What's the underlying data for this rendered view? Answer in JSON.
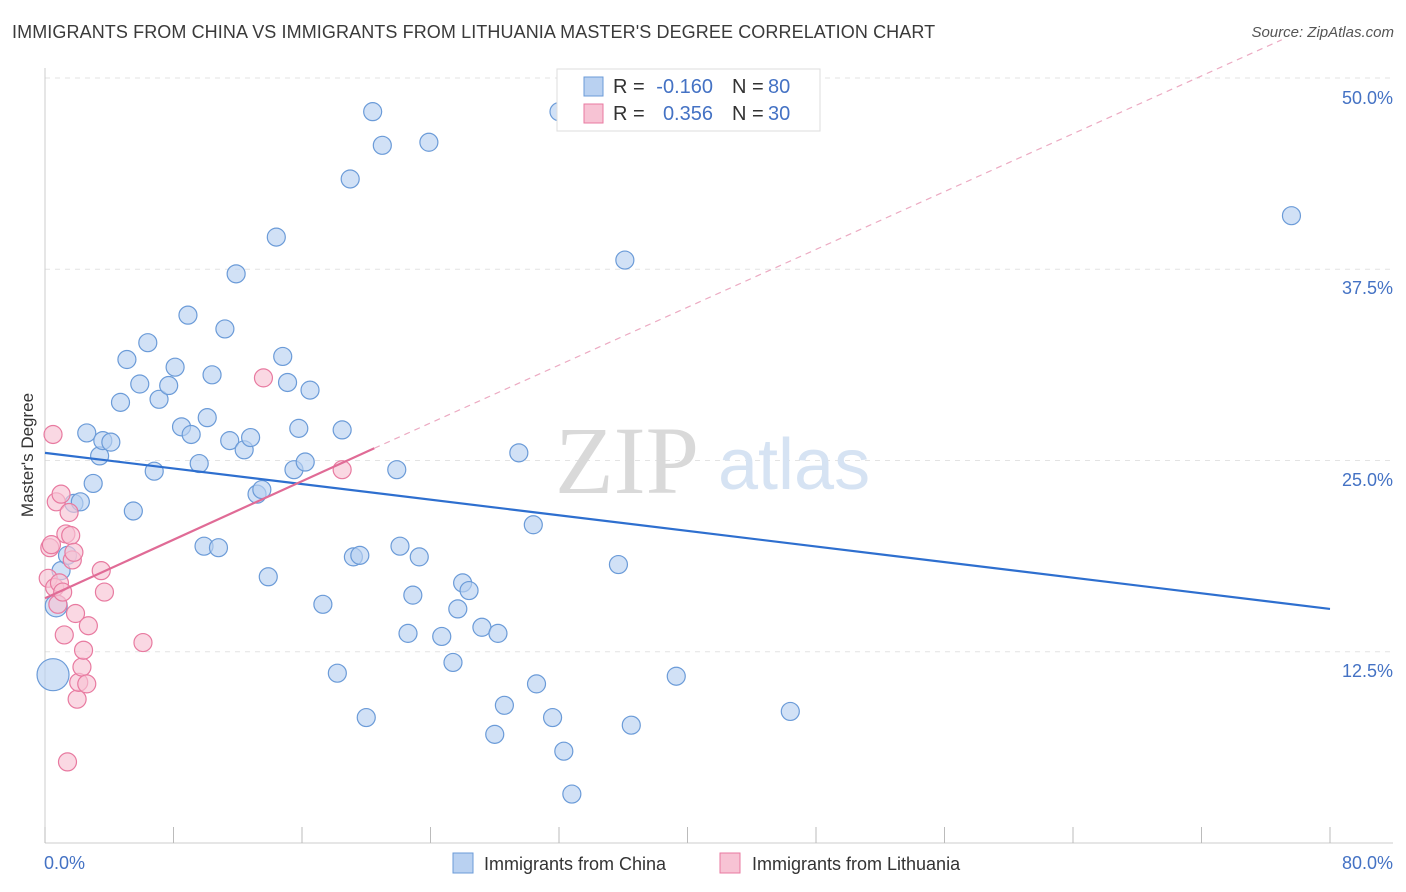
{
  "title": "IMMIGRANTS FROM CHINA VS IMMIGRANTS FROM LITHUANIA MASTER'S DEGREE CORRELATION CHART",
  "source": "Source: ZipAtlas.com",
  "watermark": {
    "zip": "ZIP",
    "atlas": "atlas"
  },
  "colors": {
    "china": "#6b9bd8",
    "china_fill": "#b9d1f1",
    "lithuania": "#e87aa0",
    "lithuania_fill": "#f7c3d4",
    "blue_line": "#2e6fcf",
    "pink_line": "#e06b96"
  },
  "legend": {
    "rows": [
      {
        "r_label": "R =",
        "r_value": "-0.160",
        "n_label": "N =",
        "n_value": "80"
      },
      {
        "r_label": "R =",
        "r_value": "0.356",
        "n_label": "N =",
        "n_value": "30"
      }
    ]
  },
  "chart_data": {
    "type": "scatter",
    "xlabel": "",
    "ylabel": "Master's Degree",
    "xlim": [
      0,
      80
    ],
    "ylim": [
      0,
      50
    ],
    "x_tick_labels": [
      "0.0%",
      "80.0%"
    ],
    "y_tick_labels": [
      "12.5%",
      "25.0%",
      "37.5%",
      "50.0%"
    ],
    "y_ticks": [
      12.5,
      25.0,
      37.5,
      50.0
    ],
    "series": [
      {
        "name": "Immigrants from China",
        "trend": {
          "x": [
            0,
            80
          ],
          "y": [
            25.5,
            15.3
          ]
        },
        "points": [
          [
            0.5,
            11.0,
            16
          ],
          [
            0.7,
            15.5,
            11
          ],
          [
            1.0,
            17.8,
            9
          ],
          [
            1.4,
            18.8,
            9
          ],
          [
            1.8,
            22.2,
            9
          ],
          [
            2.2,
            22.3,
            9
          ],
          [
            2.6,
            26.8,
            9
          ],
          [
            3.0,
            23.5,
            9
          ],
          [
            3.4,
            25.3,
            9
          ],
          [
            3.6,
            26.3,
            9
          ],
          [
            4.1,
            26.2,
            9
          ],
          [
            4.7,
            28.8,
            9
          ],
          [
            5.1,
            31.6,
            9
          ],
          [
            5.5,
            21.7,
            9
          ],
          [
            5.9,
            30.0,
            9
          ],
          [
            6.4,
            32.7,
            9
          ],
          [
            6.8,
            24.3,
            9
          ],
          [
            7.1,
            29.0,
            9
          ],
          [
            7.7,
            29.9,
            9
          ],
          [
            8.1,
            31.1,
            9
          ],
          [
            8.5,
            27.2,
            9
          ],
          [
            8.9,
            34.5,
            9
          ],
          [
            9.1,
            26.7,
            9
          ],
          [
            9.6,
            24.8,
            9
          ],
          [
            9.9,
            19.4,
            9
          ],
          [
            10.1,
            27.8,
            9
          ],
          [
            10.4,
            30.6,
            9
          ],
          [
            10.8,
            19.3,
            9
          ],
          [
            11.2,
            33.6,
            9
          ],
          [
            11.5,
            26.3,
            9
          ],
          [
            11.9,
            37.2,
            9
          ],
          [
            12.4,
            25.7,
            9
          ],
          [
            12.8,
            26.5,
            9
          ],
          [
            13.2,
            22.8,
            9
          ],
          [
            13.5,
            23.1,
            9
          ],
          [
            13.9,
            17.4,
            9
          ],
          [
            14.4,
            39.6,
            9
          ],
          [
            14.8,
            31.8,
            9
          ],
          [
            15.1,
            30.1,
            9
          ],
          [
            15.5,
            24.4,
            9
          ],
          [
            15.8,
            27.1,
            9
          ],
          [
            16.2,
            24.9,
            9
          ],
          [
            16.5,
            29.6,
            9
          ],
          [
            17.3,
            15.6,
            9
          ],
          [
            18.2,
            11.1,
            9
          ],
          [
            18.5,
            27.0,
            9
          ],
          [
            19.0,
            43.4,
            9
          ],
          [
            19.2,
            18.7,
            9
          ],
          [
            19.6,
            18.8,
            9
          ],
          [
            20.0,
            8.2,
            9
          ],
          [
            20.4,
            47.8,
            9
          ],
          [
            21.0,
            45.6,
            9
          ],
          [
            21.9,
            24.4,
            9
          ],
          [
            22.1,
            19.4,
            9
          ],
          [
            22.6,
            13.7,
            9
          ],
          [
            22.9,
            16.2,
            9
          ],
          [
            23.3,
            18.7,
            9
          ],
          [
            23.9,
            45.8,
            9
          ],
          [
            24.7,
            13.5,
            9
          ],
          [
            25.4,
            11.8,
            9
          ],
          [
            25.7,
            15.3,
            9
          ],
          [
            26.0,
            17.0,
            9
          ],
          [
            26.4,
            16.5,
            9
          ],
          [
            27.2,
            14.1,
            9
          ],
          [
            28.0,
            7.1,
            9
          ],
          [
            28.2,
            13.7,
            9
          ],
          [
            28.6,
            9.0,
            9
          ],
          [
            29.5,
            25.5,
            9
          ],
          [
            30.4,
            20.8,
            9
          ],
          [
            30.6,
            10.4,
            9
          ],
          [
            31.6,
            8.2,
            9
          ],
          [
            32.0,
            47.8,
            9
          ],
          [
            32.3,
            6.0,
            9
          ],
          [
            32.8,
            3.2,
            9
          ],
          [
            35.7,
            18.2,
            9
          ],
          [
            36.1,
            38.1,
            9
          ],
          [
            36.5,
            7.7,
            9
          ],
          [
            39.3,
            10.9,
            9
          ],
          [
            46.4,
            8.6,
            9
          ],
          [
            77.6,
            41.0,
            9
          ]
        ]
      },
      {
        "name": "Immigrants from Lithuania",
        "trend": {
          "x": [
            0,
            20.5
          ],
          "y": [
            16.0,
            25.8
          ]
        },
        "trend_extension": {
          "x": [
            20.5,
            77
          ],
          "y": [
            25.8,
            52.5
          ]
        },
        "points": [
          [
            0.2,
            17.3,
            9
          ],
          [
            0.3,
            19.3,
            9
          ],
          [
            0.4,
            19.5,
            9
          ],
          [
            0.5,
            26.7,
            9
          ],
          [
            0.6,
            16.7,
            9
          ],
          [
            0.7,
            22.3,
            9
          ],
          [
            0.8,
            15.6,
            9
          ],
          [
            0.9,
            17.0,
            9
          ],
          [
            1.0,
            22.8,
            9
          ],
          [
            1.1,
            16.4,
            9
          ],
          [
            1.2,
            13.6,
            9
          ],
          [
            1.3,
            20.2,
            9
          ],
          [
            1.4,
            5.3,
            9
          ],
          [
            1.5,
            21.6,
            9
          ],
          [
            1.6,
            20.1,
            9
          ],
          [
            1.7,
            18.5,
            9
          ],
          [
            1.8,
            19.0,
            9
          ],
          [
            1.9,
            15.0,
            9
          ],
          [
            2.0,
            9.4,
            9
          ],
          [
            2.1,
            10.5,
            9
          ],
          [
            2.3,
            11.5,
            9
          ],
          [
            2.4,
            12.6,
            9
          ],
          [
            2.6,
            10.4,
            9
          ],
          [
            2.7,
            14.2,
            9
          ],
          [
            3.5,
            17.8,
            9
          ],
          [
            3.7,
            16.4,
            9
          ],
          [
            6.1,
            13.1,
            9
          ],
          [
            13.6,
            30.4,
            9
          ],
          [
            18.5,
            24.4,
            9
          ],
          [
            32.5,
            48.0,
            9
          ]
        ]
      }
    ]
  }
}
